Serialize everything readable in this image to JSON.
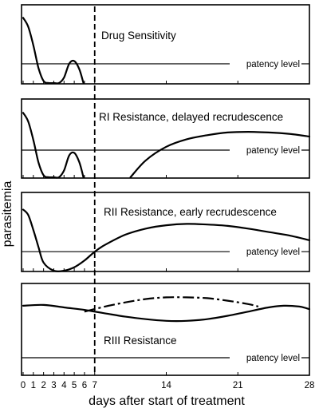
{
  "chart_data": {
    "type": "line",
    "xlabel": "days after start of treatment",
    "ylabel": "parasitemia",
    "xlim": [
      0,
      28
    ],
    "x_ticks": [
      0,
      1,
      2,
      3,
      4,
      5,
      6,
      7,
      14,
      21,
      28
    ],
    "x_tick_labels": [
      "0",
      "1",
      "2",
      "3",
      "4",
      "5",
      "6",
      "7",
      "14",
      "21",
      "28"
    ],
    "treatment_marker_day": 7,
    "patency_label": "patency level",
    "panels": [
      {
        "title": "Drug Sensitivity",
        "series": [
          {
            "style": "solid",
            "x": [
              0,
              0.5,
              1,
              1.5,
              2,
              2.5,
              3,
              3.5,
              4,
              4.5,
              5,
              5.5,
              5.9
            ],
            "y": [
              0.95,
              0.82,
              0.55,
              0.22,
              0.03,
              0.0,
              0.0,
              0.0,
              0.08,
              0.28,
              0.32,
              0.2,
              0.0
            ]
          }
        ],
        "patency": 0.28
      },
      {
        "title": "RI Resistance, delayed recrudescence",
        "series": [
          {
            "style": "solid",
            "x": [
              0,
              0.5,
              1,
              1.5,
              2,
              2.5,
              3,
              3.5,
              4,
              4.5,
              5,
              5.5,
              5.9
            ],
            "y": [
              0.95,
              0.82,
              0.55,
              0.22,
              0.03,
              0.0,
              0.0,
              0.0,
              0.1,
              0.32,
              0.36,
              0.22,
              0.0
            ]
          },
          {
            "style": "solid",
            "x": [
              10.5,
              12,
              14,
              16,
              18,
              20,
              22,
              24,
              26,
              28
            ],
            "y": [
              0.0,
              0.25,
              0.45,
              0.56,
              0.62,
              0.66,
              0.67,
              0.66,
              0.64,
              0.6
            ]
          }
        ],
        "patency": 0.4
      },
      {
        "title": "RII Resistance, early recrudescence",
        "series": [
          {
            "style": "solid",
            "x": [
              0,
              0.5,
              1,
              1.5,
              2,
              3,
              4,
              5,
              6,
              7,
              8,
              10,
              12,
              14,
              16,
              18,
              20,
              22,
              24,
              26,
              28
            ],
            "y": [
              0.9,
              0.82,
              0.6,
              0.35,
              0.12,
              0.0,
              0.0,
              0.05,
              0.15,
              0.28,
              0.38,
              0.53,
              0.62,
              0.67,
              0.69,
              0.68,
              0.66,
              0.62,
              0.57,
              0.52,
              0.45
            ]
          }
        ],
        "patency": 0.28
      },
      {
        "title": "RIII Resistance",
        "series": [
          {
            "style": "solid",
            "x": [
              0,
              2,
              4,
              6,
              8,
              10,
              12,
              14,
              16,
              18,
              20,
              22,
              24,
              25.5,
              27,
              28
            ],
            "y": [
              0.82,
              0.83,
              0.8,
              0.77,
              0.73,
              0.69,
              0.66,
              0.64,
              0.64,
              0.66,
              0.7,
              0.75,
              0.8,
              0.82,
              0.81,
              0.78
            ]
          },
          {
            "style": "dashdot",
            "x": [
              6,
              8,
              10,
              12,
              14,
              16,
              18,
              20,
              22,
              23
            ],
            "y": [
              0.75,
              0.81,
              0.86,
              0.9,
              0.92,
              0.92,
              0.91,
              0.88,
              0.84,
              0.81
            ]
          }
        ],
        "patency": 0.2
      }
    ]
  }
}
